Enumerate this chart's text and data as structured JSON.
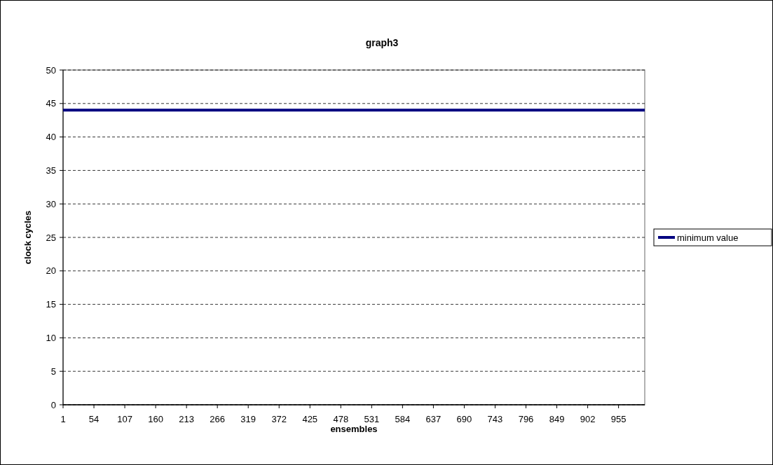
{
  "chart_data": {
    "type": "line",
    "title": "graph3",
    "xlabel": "ensembles",
    "ylabel": "clock cycles",
    "x": [
      1,
      1000
    ],
    "series": [
      {
        "name": "minimum value",
        "color": "#000080",
        "values": [
          44,
          44
        ]
      }
    ],
    "xlim": [
      1,
      1000
    ],
    "xticks": [
      1,
      54,
      107,
      160,
      213,
      266,
      319,
      372,
      425,
      478,
      531,
      584,
      637,
      690,
      743,
      796,
      849,
      902,
      955
    ],
    "ylim": [
      0,
      50
    ],
    "yticks": [
      0,
      5,
      10,
      15,
      20,
      25,
      30,
      35,
      40,
      45,
      50
    ],
    "grid": "y",
    "legend": "right",
    "marker": "none",
    "line_style": "solid"
  }
}
